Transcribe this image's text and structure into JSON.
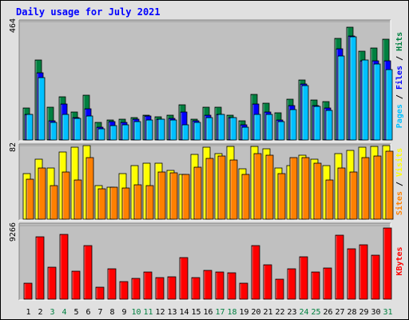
{
  "title": "Daily usage for July 2021",
  "colors": {
    "hits": "#008040",
    "files": "#0000ff",
    "pages": "#00c0ff",
    "visits": "#ffff00",
    "sites": "#ff8000",
    "kbytes": "#ff0000",
    "panel_bg": "#c0c0c0",
    "weekend_day": "#008040",
    "weekday_day": "#000000"
  },
  "chart_data": [
    {
      "type": "bar",
      "name": "hits-files-pages",
      "ylim": [
        0,
        464
      ],
      "y_tick_label": "464",
      "legend": [
        "Pages",
        "Files",
        "Hits"
      ],
      "categories": [
        "1",
        "2",
        "3",
        "4",
        "5",
        "6",
        "7",
        "8",
        "9",
        "10",
        "11",
        "12",
        "13",
        "14",
        "15",
        "16",
        "17",
        "18",
        "19",
        "20",
        "21",
        "22",
        "23",
        "24",
        "25",
        "26",
        "27",
        "28",
        "29",
        "30",
        "31"
      ],
      "weekend": [
        "3",
        "4",
        "10",
        "11",
        "17",
        "18",
        "24",
        "25",
        "31"
      ],
      "series": [
        {
          "name": "Hits",
          "values": [
            126,
            312,
            127,
            168,
            109,
            177,
            68,
            77,
            83,
            87,
            98,
            92,
            97,
            138,
            83,
            129,
            129,
            97,
            76,
            180,
            145,
            106,
            160,
            235,
            156,
            151,
            398,
            443,
            349,
            359,
            394
          ]
        },
        {
          "name": "Files",
          "values": [
            99,
            264,
            76,
            141,
            88,
            122,
            51,
            73,
            70,
            83,
            93,
            82,
            84,
            111,
            76,
            97,
            99,
            88,
            60,
            141,
            109,
            77,
            135,
            219,
            134,
            126,
            357,
            407,
            310,
            311,
            310
          ]
        },
        {
          "name": "Pages",
          "values": [
            99,
            246,
            70,
            99,
            85,
            93,
            43,
            55,
            59,
            73,
            77,
            80,
            79,
            61,
            69,
            88,
            100,
            87,
            51,
            99,
            99,
            72,
            118,
            213,
            131,
            116,
            330,
            403,
            314,
            298,
            276
          ]
        }
      ]
    },
    {
      "type": "bar",
      "name": "visits-sites",
      "ylim": [
        0,
        82
      ],
      "y_tick_label": "82",
      "legend": [
        "Sites",
        "Visits"
      ],
      "categories": [
        "1",
        "2",
        "3",
        "4",
        "5",
        "6",
        "7",
        "8",
        "9",
        "10",
        "11",
        "12",
        "13",
        "14",
        "15",
        "16",
        "17",
        "18",
        "19",
        "20",
        "21",
        "22",
        "23",
        "24",
        "25",
        "26",
        "27",
        "28",
        "29",
        "30",
        "31"
      ],
      "weekend": [
        "3",
        "4",
        "10",
        "11",
        "17",
        "18",
        "24",
        "25",
        "31"
      ],
      "series": [
        {
          "name": "Visits",
          "values": [
            51,
            67,
            57,
            75,
            80,
            82,
            37,
            36,
            51,
            60,
            62,
            62,
            54,
            50,
            72,
            80,
            73,
            81,
            56,
            81,
            78,
            57,
            60,
            71,
            67,
            60,
            73,
            77,
            80,
            81,
            82
          ]
        },
        {
          "name": "Sites",
          "values": [
            45,
            57,
            37,
            53,
            44,
            69,
            34,
            36,
            35,
            38,
            37,
            53,
            52,
            50,
            58,
            68,
            70,
            66,
            50,
            73,
            71,
            51,
            69,
            69,
            62,
            44,
            57,
            53,
            69,
            70,
            76
          ]
        }
      ]
    },
    {
      "type": "bar",
      "name": "kbytes",
      "ylim": [
        0,
        9266
      ],
      "y_tick_label": "9266",
      "legend": [
        "KBytes"
      ],
      "categories": [
        "1",
        "2",
        "3",
        "4",
        "5",
        "6",
        "7",
        "8",
        "9",
        "10",
        "11",
        "12",
        "13",
        "14",
        "15",
        "16",
        "17",
        "18",
        "19",
        "20",
        "21",
        "22",
        "23",
        "24",
        "25",
        "26",
        "27",
        "28",
        "29",
        "30",
        "31"
      ],
      "weekend": [
        "3",
        "4",
        "10",
        "11",
        "17",
        "18",
        "24",
        "25",
        "31"
      ],
      "series": [
        {
          "name": "KBytes",
          "values": [
            2001,
            7880,
            3992,
            8132,
            3491,
            6780,
            1492,
            3807,
            2198,
            2597,
            3377,
            2760,
            2860,
            5188,
            2703,
            3592,
            3406,
            3325,
            1974,
            6793,
            4350,
            2523,
            3832,
            5341,
            3464,
            3894,
            8042,
            6373,
            6880,
            5532,
            8938
          ]
        }
      ]
    }
  ]
}
